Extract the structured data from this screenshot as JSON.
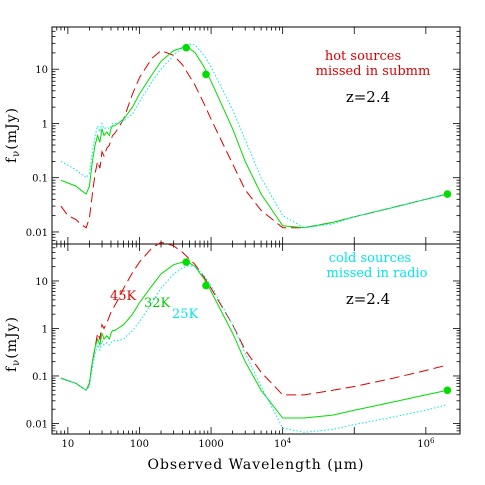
{
  "colors": {
    "red": "#dd0000",
    "green": "#00dd00",
    "cyan": "#00e5ee",
    "axis": "#000000"
  },
  "chart_data": [
    {
      "type": "line",
      "panel": "top",
      "xscale": "log",
      "yscale": "log",
      "xlim": [
        6,
        3000000
      ],
      "ylim": [
        0.006,
        60
      ],
      "x_ticklabels_shown": false,
      "y_ticks": [
        "0.01",
        "0.1",
        "1",
        "10"
      ],
      "ylabel": "f_ν(mJy)",
      "annotations": [
        {
          "text": "hot sources",
          "color": "red"
        },
        {
          "text": "missed in submm",
          "color": "red"
        },
        {
          "text": "z=2.4",
          "color": "black"
        }
      ],
      "series": [
        {
          "style": "dashed",
          "color": "red",
          "x": [
            8,
            10,
            13,
            15,
            18,
            20,
            22,
            24,
            26,
            28,
            30,
            32,
            35,
            38,
            40,
            42,
            45,
            50,
            60,
            80,
            100,
            150,
            200,
            300,
            400,
            600,
            800,
            1000,
            2000,
            3000,
            5000,
            10000,
            20000,
            50000,
            100000,
            300000,
            1000000,
            2000000
          ],
          "y": [
            0.03,
            0.02,
            0.017,
            0.014,
            0.012,
            0.018,
            0.05,
            0.12,
            0.2,
            0.15,
            0.3,
            0.25,
            0.35,
            0.4,
            0.5,
            0.6,
            0.65,
            0.8,
            1.2,
            3.5,
            7,
            16,
            22,
            18,
            12,
            5,
            2.3,
            1.2,
            0.18,
            0.06,
            0.025,
            0.012,
            0.012,
            0.015,
            0.019,
            0.027,
            0.04,
            0.05
          ]
        },
        {
          "style": "solid",
          "color": "green",
          "x": [
            8,
            10,
            13,
            15,
            18,
            20,
            22,
            24,
            26,
            28,
            30,
            32,
            35,
            38,
            40,
            42,
            45,
            50,
            60,
            80,
            100,
            150,
            200,
            300,
            400,
            500,
            600,
            800,
            1000,
            2000,
            3000,
            5000,
            10000,
            20000,
            50000,
            100000,
            300000,
            1000000,
            2000000
          ],
          "y": [
            0.09,
            0.08,
            0.07,
            0.06,
            0.05,
            0.07,
            0.2,
            0.4,
            0.6,
            0.45,
            0.8,
            0.6,
            0.7,
            0.6,
            0.8,
            0.9,
            0.9,
            1.0,
            1.2,
            2,
            3.5,
            8,
            14,
            22,
            25,
            24,
            20,
            11,
            6,
            0.8,
            0.2,
            0.05,
            0.013,
            0.012,
            0.015,
            0.019,
            0.027,
            0.04,
            0.05
          ]
        },
        {
          "style": "dotted",
          "color": "cyan",
          "x": [
            8,
            10,
            13,
            15,
            18,
            20,
            22,
            24,
            26,
            28,
            30,
            32,
            35,
            38,
            40,
            42,
            45,
            50,
            60,
            80,
            100,
            150,
            200,
            300,
            400,
            500,
            600,
            800,
            1000,
            2000,
            3000,
            5000,
            10000,
            20000,
            50000,
            100000,
            300000,
            1000000,
            2000000
          ],
          "y": [
            0.2,
            0.17,
            0.14,
            0.12,
            0.1,
            0.12,
            0.3,
            0.6,
            0.9,
            0.7,
            1.0,
            0.8,
            0.85,
            0.8,
            0.9,
            1.0,
            1.0,
            1.0,
            1.1,
            1.5,
            2.5,
            6,
            10,
            18,
            25,
            29,
            28,
            18,
            11,
            1.8,
            0.5,
            0.1,
            0.02,
            0.012,
            0.014,
            0.019,
            0.027,
            0.04,
            0.05
          ]
        }
      ],
      "markers": {
        "color": "green",
        "x": [
          450,
          850,
          2000000
        ],
        "y": [
          25,
          8,
          0.05
        ]
      }
    },
    {
      "type": "line",
      "panel": "bottom",
      "xscale": "log",
      "yscale": "log",
      "xlim": [
        6,
        3000000
      ],
      "ylim": [
        0.006,
        60
      ],
      "x_ticks": [
        "10",
        "100",
        "1000",
        "10^4",
        "10^6"
      ],
      "y_ticks": [
        "0.01",
        "0.1",
        "1",
        "10"
      ],
      "ylabel": "f_ν(mJy)",
      "xlabel": "Observed Wavelength (μm)",
      "annotations": [
        {
          "text": "cold sources",
          "color": "cyan"
        },
        {
          "text": "missed in radio",
          "color": "cyan"
        },
        {
          "text": "z=2.4",
          "color": "black"
        },
        {
          "text": "45K",
          "color": "red"
        },
        {
          "text": "32K",
          "color": "green"
        },
        {
          "text": "25K",
          "color": "cyan"
        }
      ],
      "series": [
        {
          "style": "dashed",
          "color": "red",
          "label": "45K",
          "x": [
            8,
            10,
            13,
            15,
            18,
            20,
            22,
            24,
            26,
            28,
            30,
            32,
            35,
            38,
            40,
            42,
            45,
            50,
            60,
            80,
            100,
            150,
            200,
            300,
            400,
            600,
            800,
            1000,
            2000,
            3000,
            5000,
            10000,
            20000,
            50000,
            100000,
            300000,
            1000000,
            2000000
          ],
          "y": [
            0.09,
            0.08,
            0.07,
            0.06,
            0.05,
            0.07,
            0.2,
            0.4,
            0.8,
            0.6,
            1.2,
            1.0,
            1.3,
            1.8,
            2.2,
            2.5,
            3,
            4,
            7,
            15,
            25,
            50,
            65,
            55,
            40,
            22,
            12,
            7,
            1.2,
            0.35,
            0.12,
            0.04,
            0.04,
            0.05,
            0.06,
            0.085,
            0.13,
            0.17
          ]
        },
        {
          "style": "solid",
          "color": "green",
          "label": "32K",
          "x": [
            8,
            10,
            13,
            15,
            18,
            20,
            22,
            24,
            26,
            28,
            30,
            32,
            35,
            38,
            40,
            42,
            45,
            50,
            60,
            80,
            100,
            150,
            200,
            300,
            400,
            500,
            600,
            800,
            1000,
            2000,
            3000,
            5000,
            10000,
            20000,
            50000,
            100000,
            300000,
            1000000,
            2000000
          ],
          "y": [
            0.09,
            0.08,
            0.07,
            0.06,
            0.05,
            0.07,
            0.2,
            0.4,
            0.6,
            0.45,
            0.8,
            0.6,
            0.7,
            0.6,
            0.8,
            0.9,
            0.9,
            1.0,
            1.2,
            2,
            3.5,
            8,
            14,
            22,
            25,
            24,
            20,
            11,
            6,
            0.8,
            0.2,
            0.05,
            0.013,
            0.013,
            0.015,
            0.019,
            0.027,
            0.04,
            0.05
          ]
        },
        {
          "style": "dotted",
          "color": "cyan",
          "label": "25K",
          "x": [
            8,
            10,
            13,
            15,
            18,
            20,
            22,
            24,
            26,
            28,
            30,
            32,
            35,
            38,
            40,
            42,
            45,
            50,
            60,
            80,
            100,
            150,
            200,
            300,
            400,
            500,
            600,
            800,
            1000,
            2000,
            3000,
            5000,
            10000,
            20000,
            50000,
            100000,
            300000,
            1000000,
            2000000
          ],
          "y": [
            0.09,
            0.08,
            0.07,
            0.06,
            0.05,
            0.06,
            0.15,
            0.3,
            0.45,
            0.35,
            0.55,
            0.45,
            0.5,
            0.45,
            0.5,
            0.55,
            0.55,
            0.55,
            0.6,
            0.9,
            1.4,
            3.5,
            7,
            14,
            19,
            21,
            20,
            13,
            8,
            1.2,
            0.3,
            0.06,
            0.008,
            0.0065,
            0.0075,
            0.0095,
            0.013,
            0.019,
            0.025
          ]
        }
      ],
      "markers": {
        "color": "green",
        "x": [
          450,
          850,
          2000000
        ],
        "y": [
          25,
          8,
          0.05
        ]
      }
    }
  ]
}
